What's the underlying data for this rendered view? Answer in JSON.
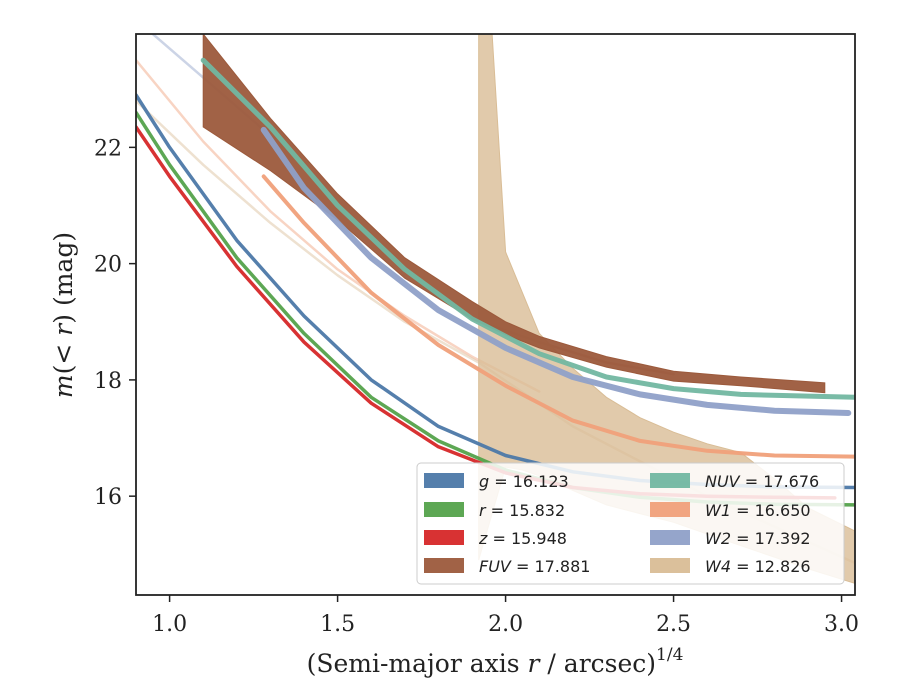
{
  "chart_data": {
    "type": "line",
    "xlabel_prefix": "(Semi-major axis ",
    "xlabel_var": "r",
    "xlabel_mid": " / arcsec)",
    "xlabel_sup": "1/4",
    "ylabel_m": "m",
    "ylabel_paren": "(< ",
    "ylabel_r": "r",
    "ylabel_close": ") (mag)",
    "xlim": [
      0.9,
      3.04
    ],
    "ylim": [
      23.95,
      14.3
    ],
    "y_inverted": true,
    "xticks": [
      1.0,
      1.5,
      2.0,
      2.5,
      3.0
    ],
    "xtick_labels": [
      "1.0",
      "1.5",
      "2.0",
      "2.5",
      "3.0"
    ],
    "yticks": [
      16,
      18,
      20,
      22
    ],
    "ytick_labels": [
      "16",
      "18",
      "20",
      "22"
    ],
    "legend_position": "lower-right",
    "legend_columns": 2,
    "series": [
      {
        "name": "g",
        "label_value": "16.123",
        "color": "#4c78a8",
        "style": "line",
        "width": 3.5,
        "x": [
          0.9,
          1.0,
          1.2,
          1.4,
          1.6,
          1.8,
          2.0,
          2.2,
          2.4,
          2.6,
          2.8,
          3.04
        ],
        "y": [
          22.9,
          22.0,
          20.4,
          19.1,
          18.0,
          17.2,
          16.7,
          16.42,
          16.27,
          16.2,
          16.16,
          16.15
        ]
      },
      {
        "name": "r",
        "label_value": "15.832",
        "color": "#54a24b",
        "style": "line",
        "width": 3.5,
        "x": [
          0.9,
          1.0,
          1.2,
          1.4,
          1.6,
          1.8,
          2.0,
          2.2,
          2.4,
          2.6,
          2.8,
          3.04
        ],
        "y": [
          22.6,
          21.7,
          20.1,
          18.8,
          17.7,
          16.95,
          16.45,
          16.15,
          15.98,
          15.9,
          15.86,
          15.85
        ]
      },
      {
        "name": "z",
        "label_value": "15.948",
        "color": "#d62728",
        "style": "line",
        "width": 3.5,
        "x": [
          0.9,
          1.0,
          1.2,
          1.4,
          1.6,
          1.8,
          2.0,
          2.2,
          2.4,
          2.6,
          2.8,
          2.98
        ],
        "y": [
          22.35,
          21.5,
          19.95,
          18.65,
          17.6,
          16.85,
          16.4,
          16.15,
          16.04,
          16.0,
          15.98,
          15.97
        ]
      },
      {
        "name": "FUV",
        "label_value": "17.881",
        "color": "#9c5a3c",
        "style": "band",
        "x": [
          1.1,
          1.3,
          1.5,
          1.7,
          1.9,
          2.0,
          2.1,
          2.3,
          2.5,
          2.7,
          2.95
        ],
        "y_low": [
          23.95,
          22.5,
          21.2,
          20.1,
          19.35,
          19.0,
          18.75,
          18.4,
          18.15,
          18.05,
          17.95
        ],
        "y_high": [
          22.35,
          21.6,
          20.75,
          19.75,
          19.05,
          18.78,
          18.55,
          18.22,
          17.98,
          17.9,
          17.78
        ]
      },
      {
        "name": "NUV",
        "label_value": "17.676",
        "color": "#72b7a1",
        "style": "line",
        "width": 5,
        "x": [
          1.1,
          1.3,
          1.5,
          1.7,
          1.9,
          2.1,
          2.3,
          2.5,
          2.7,
          3.04
        ],
        "y": [
          23.5,
          22.35,
          21.0,
          19.9,
          19.05,
          18.45,
          18.05,
          17.85,
          17.75,
          17.7
        ]
      },
      {
        "name": "W1",
        "label_value": "16.650",
        "color": "#f0a07a",
        "style": "line",
        "width": 4,
        "x": [
          1.28,
          1.4,
          1.6,
          1.8,
          2.0,
          2.2,
          2.4,
          2.6,
          2.8,
          3.04
        ],
        "y": [
          21.5,
          20.7,
          19.5,
          18.6,
          17.9,
          17.3,
          16.95,
          16.78,
          16.7,
          16.68
        ]
      },
      {
        "name": "W2",
        "label_value": "17.392",
        "color": "#8fa0c8",
        "style": "line",
        "width": 6,
        "x": [
          1.28,
          1.4,
          1.6,
          1.8,
          2.0,
          2.2,
          2.4,
          2.6,
          2.8,
          3.02
        ],
        "y": [
          22.3,
          21.3,
          20.1,
          19.2,
          18.55,
          18.05,
          17.75,
          17.57,
          17.47,
          17.43
        ]
      },
      {
        "name": "W4",
        "label_value": "12.826",
        "color": "#d9bd96",
        "style": "band",
        "x": [
          1.92,
          1.96,
          2.0,
          2.05,
          2.1,
          2.2,
          2.3,
          2.4,
          2.5,
          2.6,
          2.7,
          2.8,
          2.9,
          3.04
        ],
        "y_low": [
          23.95,
          23.95,
          20.2,
          19.5,
          18.8,
          18.2,
          17.7,
          17.35,
          17.1,
          16.9,
          16.75,
          16.3,
          15.8,
          15.4
        ],
        "y_high": [
          14.9,
          15.7,
          16.5,
          16.45,
          16.35,
          16.1,
          15.85,
          15.7,
          15.55,
          15.35,
          15.15,
          14.95,
          14.75,
          14.5
        ]
      }
    ],
    "faint_extensions": [
      {
        "of": "W1",
        "color": "#f0a07a",
        "x": [
          0.9,
          1.1,
          1.3,
          1.5,
          1.7,
          1.9,
          2.1
        ],
        "y": [
          23.5,
          22.1,
          20.9,
          19.9,
          19.1,
          18.4,
          17.8
        ]
      },
      {
        "of": "W4",
        "color": "#d9bd96",
        "x": [
          0.9,
          1.1,
          1.3,
          1.5,
          1.7,
          1.92,
          2.2,
          2.6,
          3.04
        ],
        "y": [
          22.8,
          21.7,
          20.7,
          19.8,
          19.0,
          18.3,
          17.2,
          16.0,
          14.85
        ]
      },
      {
        "of": "W2",
        "color": "#8fa0c8",
        "x": [
          0.95,
          1.1,
          1.28
        ],
        "y": [
          23.95,
          23.2,
          22.3
        ]
      },
      {
        "of": "FUV",
        "color": "#9c5a3c",
        "x": [
          1.9,
          2.1,
          2.3,
          2.5
        ],
        "y": [
          19.05,
          18.65,
          18.3,
          18.1
        ]
      }
    ]
  }
}
